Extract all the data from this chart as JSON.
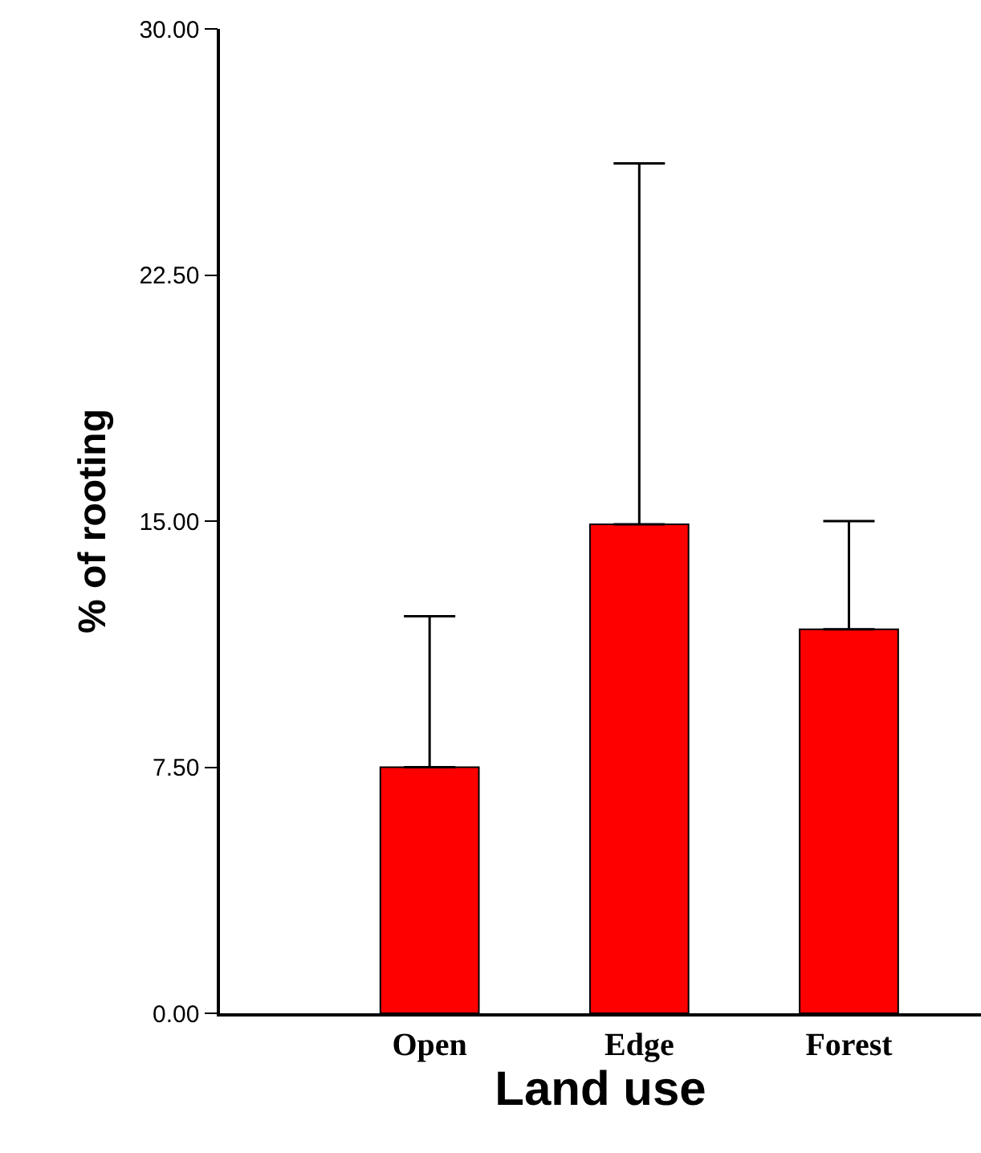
{
  "chart_data": {
    "type": "bar",
    "xlabel": "Land use",
    "ylabel": "% of rooting",
    "categories": [
      "Open",
      "Edge",
      "Forest"
    ],
    "values": [
      7.5,
      14.9,
      11.7
    ],
    "color": "#ff0000",
    "errors": [
      [
        7.5,
        12.1
      ],
      [
        14.9,
        25.9
      ],
      [
        11.7,
        15.0
      ]
    ],
    "ylim": [
      0,
      30
    ],
    "yticks": [
      {
        "value": 0,
        "label": "0.00"
      },
      {
        "value": 7.5,
        "label": "7.50"
      },
      {
        "value": 15,
        "label": "15.00"
      },
      {
        "value": 22.5,
        "label": "22.50"
      },
      {
        "value": 30,
        "label": "30.00"
      }
    ],
    "grid": false
  }
}
